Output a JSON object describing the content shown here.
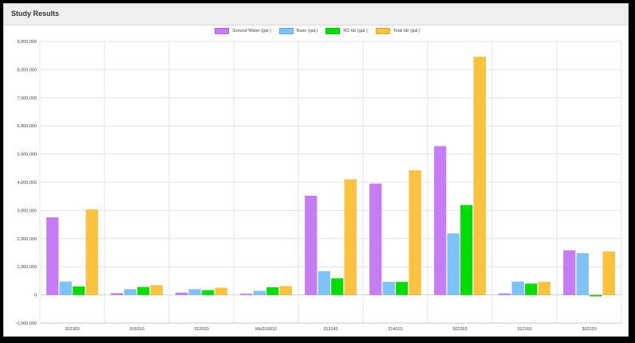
{
  "panel": {
    "title": "Study Results"
  },
  "chart_data": {
    "type": "bar",
    "title": "",
    "xlabel": "",
    "ylabel": "",
    "ylim": [
      -1000000,
      9000000
    ],
    "y_ticks": [
      -1000000,
      0,
      1000000,
      2000000,
      3000000,
      4000000,
      5000000,
      6000000,
      7000000,
      8000000,
      9000000
    ],
    "y_tick_labels": [
      "-1,000,000",
      "0",
      "1,000,000",
      "2,000,000",
      "3,000,000",
      "4,000,000",
      "5,000,000",
      "6,000,000",
      "7,000,000",
      "8,000,000",
      "9,000,000"
    ],
    "grid": true,
    "legend_position": "top-center",
    "categories": [
      "302300",
      "316010",
      "322020",
      "MH319010",
      "313140",
      "314010",
      "302265",
      "312160",
      "302220"
    ],
    "series": [
      {
        "name": "Ground Water (gal.)",
        "color": "#c77cf5",
        "values": [
          2750000,
          60000,
          80000,
          40000,
          3520000,
          3950000,
          5280000,
          50000,
          1580000
        ]
      },
      {
        "name": "Base (gal.)",
        "color": "#7ec3f7",
        "values": [
          470000,
          200000,
          200000,
          140000,
          840000,
          460000,
          2180000,
          470000,
          1480000
        ]
      },
      {
        "name": "RD I&I (gal.)",
        "color": "#00dd00",
        "values": [
          300000,
          280000,
          170000,
          270000,
          590000,
          460000,
          3190000,
          400000,
          -50000
        ]
      },
      {
        "name": "Total I&I (gal.)",
        "color": "#fec33d",
        "values": [
          3030000,
          340000,
          250000,
          310000,
          4100000,
          4420000,
          8450000,
          460000,
          1540000
        ]
      }
    ]
  }
}
